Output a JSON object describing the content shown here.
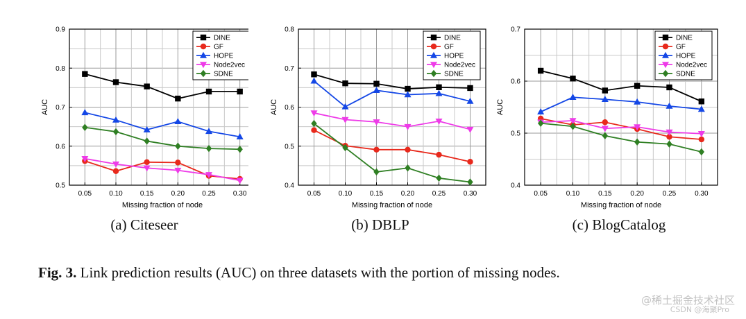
{
  "chart_data": [
    {
      "type": "line",
      "title": "(a) Citeseer",
      "xlabel": "Missing fraction of node",
      "ylabel": "AUC",
      "x": [
        "0.05",
        "0.10",
        "0.15",
        "0.20",
        "0.25",
        "0.30"
      ],
      "ylim": [
        0.5,
        0.9
      ],
      "yticks": [
        "0.5",
        "0.6",
        "0.7",
        "0.8",
        "0.9"
      ],
      "grid": true,
      "legend": "top-right",
      "series": [
        {
          "name": "DINE",
          "color": "#000000",
          "marker": "square",
          "values": [
            0.785,
            0.764,
            0.753,
            0.722,
            0.74,
            0.74
          ]
        },
        {
          "name": "GF",
          "color": "#e8291c",
          "marker": "circle",
          "values": [
            0.562,
            0.536,
            0.559,
            0.558,
            0.524,
            0.516
          ]
        },
        {
          "name": "HOPE",
          "color": "#1447e6",
          "marker": "triangle-up",
          "values": [
            0.686,
            0.667,
            0.642,
            0.663,
            0.638,
            0.624
          ]
        },
        {
          "name": "Node2vec",
          "color": "#ee3be8",
          "marker": "triangle-down",
          "values": [
            0.568,
            0.554,
            0.544,
            0.538,
            0.527,
            0.512
          ]
        },
        {
          "name": "SDNE",
          "color": "#2f7f23",
          "marker": "diamond",
          "values": [
            0.648,
            0.637,
            0.613,
            0.6,
            0.594,
            0.592
          ]
        }
      ]
    },
    {
      "type": "line",
      "title": "(b) DBLP",
      "xlabel": "Missing fraction of node",
      "ylabel": "AUC",
      "x": [
        "0.05",
        "0.10",
        "0.15",
        "0.20",
        "0.25",
        "0.30"
      ],
      "ylim": [
        0.4,
        0.8
      ],
      "yticks": [
        "0.4",
        "0.5",
        "0.6",
        "0.7",
        "0.8"
      ],
      "grid": true,
      "legend": "top-right",
      "series": [
        {
          "name": "DINE",
          "color": "#000000",
          "marker": "square",
          "values": [
            0.684,
            0.661,
            0.66,
            0.647,
            0.651,
            0.649
          ]
        },
        {
          "name": "GF",
          "color": "#e8291c",
          "marker": "circle",
          "values": [
            0.541,
            0.501,
            0.491,
            0.491,
            0.478,
            0.46
          ]
        },
        {
          "name": "HOPE",
          "color": "#1447e6",
          "marker": "triangle-up",
          "values": [
            0.667,
            0.601,
            0.643,
            0.632,
            0.635,
            0.615
          ]
        },
        {
          "name": "Node2vec",
          "color": "#ee3be8",
          "marker": "triangle-down",
          "values": [
            0.585,
            0.568,
            0.562,
            0.55,
            0.564,
            0.543
          ]
        },
        {
          "name": "SDNE",
          "color": "#2f7f23",
          "marker": "diamond",
          "values": [
            0.558,
            0.496,
            0.434,
            0.444,
            0.418,
            0.408
          ]
        }
      ]
    },
    {
      "type": "line",
      "title": "(c) BlogCatalog",
      "xlabel": "Missing fraction of node",
      "ylabel": "AUC",
      "x": [
        "0.05",
        "0.10",
        "0.15",
        "0.20",
        "0.25",
        "0.30"
      ],
      "ylim": [
        0.4,
        0.7
      ],
      "yticks": [
        "0.4",
        "0.5",
        "0.6",
        "0.7"
      ],
      "grid": true,
      "legend": "top-right",
      "series": [
        {
          "name": "DINE",
          "color": "#000000",
          "marker": "square",
          "values": [
            0.62,
            0.605,
            0.582,
            0.591,
            0.588,
            0.561
          ]
        },
        {
          "name": "GF",
          "color": "#e8291c",
          "marker": "circle",
          "values": [
            0.528,
            0.516,
            0.521,
            0.508,
            0.493,
            0.488
          ]
        },
        {
          "name": "HOPE",
          "color": "#1447e6",
          "marker": "triangle-up",
          "values": [
            0.541,
            0.569,
            0.565,
            0.56,
            0.552,
            0.546
          ]
        },
        {
          "name": "Node2vec",
          "color": "#ee3be8",
          "marker": "triangle-down",
          "values": [
            0.521,
            0.524,
            0.509,
            0.512,
            0.502,
            0.499
          ]
        },
        {
          "name": "SDNE",
          "color": "#2f7f23",
          "marker": "diamond",
          "values": [
            0.519,
            0.513,
            0.495,
            0.483,
            0.479,
            0.464
          ]
        }
      ]
    }
  ],
  "caption": {
    "label": "Fig. 3.",
    "text": " Link prediction results (AUC) on three datasets with the portion of missing nodes."
  },
  "watermark": {
    "line1": "@稀土掘金技术社区",
    "line2": "CSDN @海聚Pro"
  }
}
